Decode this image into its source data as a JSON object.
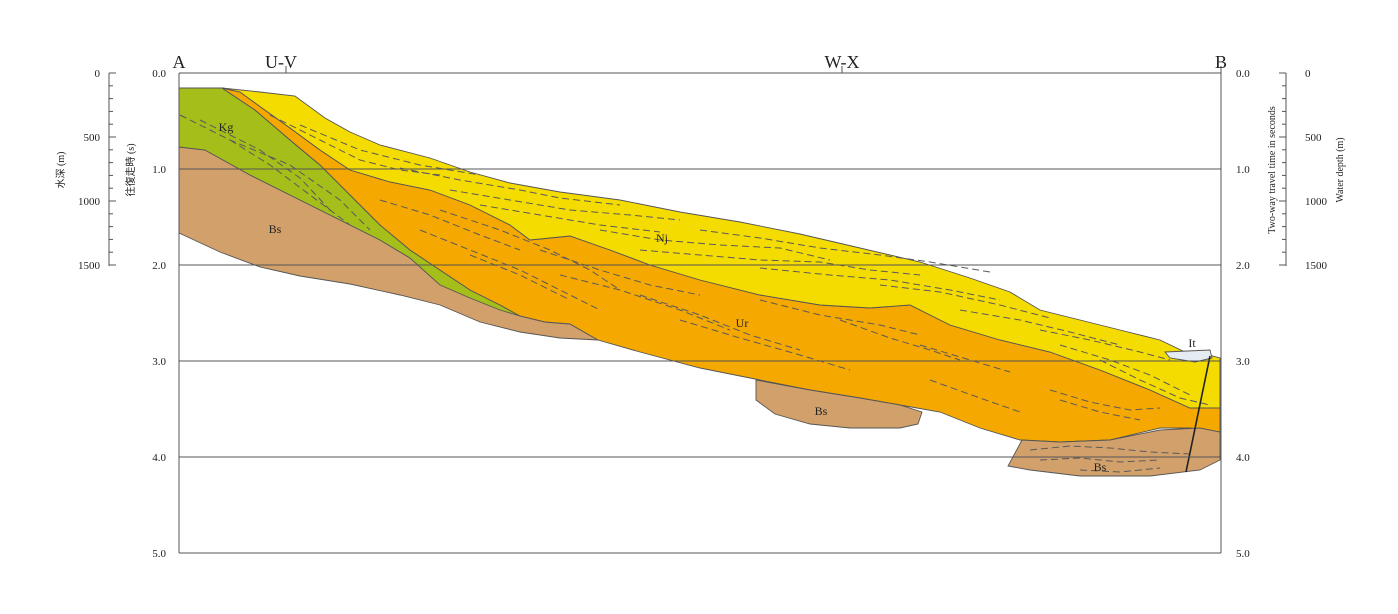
{
  "section": {
    "end_left": "A",
    "end_right": "B",
    "crossings": [
      {
        "label": "U-V"
      },
      {
        "label": "W-X"
      }
    ]
  },
  "axes": {
    "left_depth": {
      "label": "水深 (m)",
      "ticks": [
        "0",
        "500",
        "1000",
        "1500"
      ]
    },
    "left_time": {
      "label": "往復走時 (s)",
      "ticks": [
        "0.0",
        "1.0",
        "2.0",
        "3.0",
        "4.0",
        "5.0"
      ]
    },
    "right_time": {
      "label": "Two-way travel time in seconds",
      "ticks": [
        "0.0",
        "1.0",
        "2.0",
        "3.0",
        "4.0",
        "5.0"
      ]
    },
    "right_depth": {
      "label": "Water depth (m)",
      "ticks": [
        "0",
        "500",
        "1000",
        "1500"
      ]
    }
  },
  "units": [
    {
      "label": "Kg",
      "color": "#a5be1a"
    },
    {
      "label": "Bs",
      "color": "#d2a06a"
    },
    {
      "label": "Ur",
      "color": "#f5a800"
    },
    {
      "label": "Nj",
      "color": "#f5dc00"
    },
    {
      "label": "It",
      "color": "#e6edf2"
    }
  ],
  "bs_labels": [
    "Bs",
    "Bs",
    "Bs"
  ]
}
